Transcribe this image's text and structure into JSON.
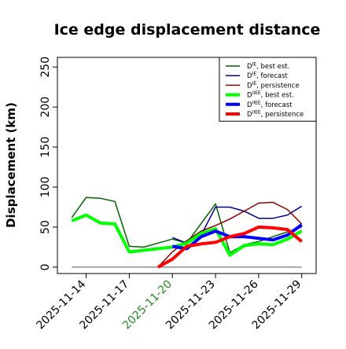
{
  "chart_data": {
    "type": "line",
    "title": "Ice edge displacement distance",
    "xlabel": "",
    "ylabel": "Displacement (km)",
    "x": [
      "2025-11-13",
      "2025-11-14",
      "2025-11-15",
      "2025-11-16",
      "2025-11-17",
      "2025-11-18",
      "2025-11-19",
      "2025-11-20",
      "2025-11-21",
      "2025-11-22",
      "2025-11-23",
      "2025-11-24",
      "2025-11-25",
      "2025-11-26",
      "2025-11-27",
      "2025-11-28",
      "2025-11-29"
    ],
    "xlim": [
      "2025-11-12",
      "2025-11-30"
    ],
    "ylim": [
      -8,
      262
    ],
    "xticks": [
      "2025-11-14",
      "2025-11-17",
      "2025-11-20",
      "2025-11-23",
      "2025-11-26",
      "2025-11-29"
    ],
    "highlight_tick": "2025-11-20",
    "highlight_color": "#228b22",
    "yticks": [
      0,
      50,
      100,
      150,
      200,
      250
    ],
    "grid": false,
    "legend_position": "top-right",
    "baseline": {
      "value": 0,
      "from": "2025-11-13",
      "to": "2025-11-29",
      "color": "#777777"
    },
    "series": [
      {
        "name": "DIE best est.",
        "legend_main": "D",
        "legend_sup": "IE",
        "legend_suffix": ", best est.",
        "color": "#006400",
        "style": "thin",
        "values": [
          62,
          87,
          86,
          82,
          26,
          25,
          30,
          35,
          30,
          null,
          79,
          18,
          28,
          32,
          38,
          44,
          50
        ]
      },
      {
        "name": "DIE forecast",
        "legend_main": "D",
        "legend_sup": "IE",
        "legend_suffix": ", forecast",
        "color": "#00008b",
        "style": "thin",
        "values": [
          null,
          null,
          null,
          null,
          null,
          null,
          null,
          37,
          30,
          40,
          75,
          75,
          70,
          61,
          61,
          65,
          76
        ]
      },
      {
        "name": "DIE persistence",
        "legend_main": "D",
        "legend_sup": "IE",
        "legend_suffix": ", persistence",
        "color": "#8b0000",
        "style": "thin",
        "values": [
          null,
          null,
          null,
          null,
          null,
          null,
          0,
          19,
          33,
          45,
          52,
          60,
          70,
          80,
          81,
          72,
          54
        ]
      },
      {
        "name": "DIIEE best est.",
        "legend_main": "D",
        "legend_sup": "IIEE",
        "legend_suffix": ", best est.",
        "color": "#00ff00",
        "style": "thick",
        "values": [
          58,
          65,
          55,
          54,
          19,
          21,
          23,
          25,
          30,
          42,
          48,
          15,
          27,
          29,
          28,
          35,
          45
        ]
      },
      {
        "name": "DIIEE forecast",
        "legend_main": "D",
        "legend_sup": "IIEE",
        "legend_suffix": ", forecast",
        "color": "#0000ff",
        "style": "thick",
        "values": [
          null,
          null,
          null,
          null,
          null,
          null,
          null,
          26,
          23,
          38,
          45,
          38,
          38,
          36,
          34,
          40,
          53
        ]
      },
      {
        "name": "DIIEE persistence",
        "legend_main": "D",
        "legend_sup": "IIEE",
        "legend_suffix": ", persistence",
        "color": "#ff0000",
        "style": "thick",
        "values": [
          null,
          null,
          null,
          null,
          null,
          null,
          0,
          10,
          26,
          29,
          31,
          38,
          42,
          50,
          49,
          47,
          32
        ]
      }
    ]
  }
}
